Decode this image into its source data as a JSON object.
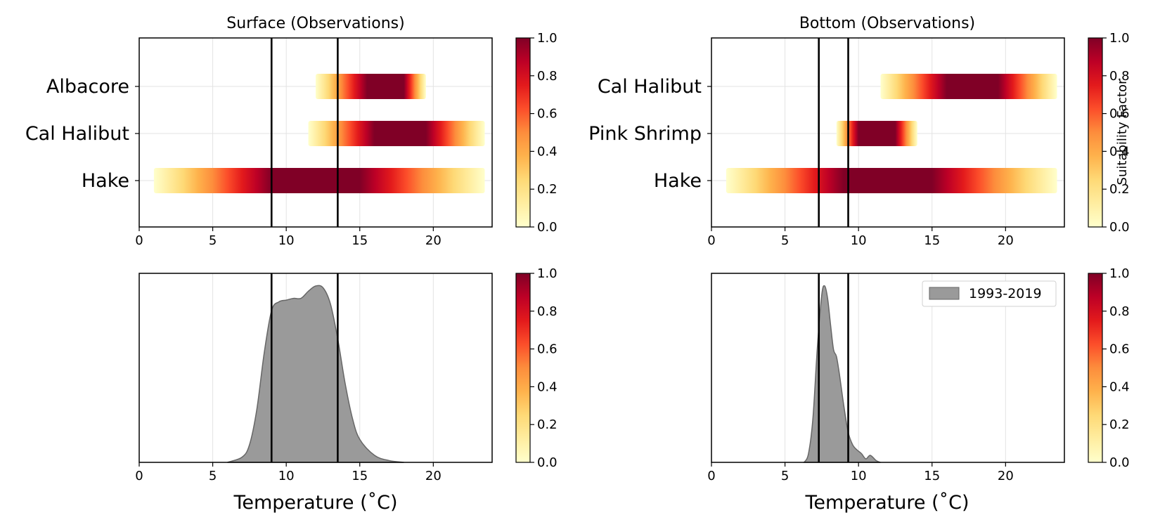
{
  "figure": {
    "colormap": "YlOrRd",
    "colors": {
      "density_fill": "#9a9a9a",
      "density_edge": "#666666",
      "threshold_line": "#000000",
      "grid": "#e3e3e3"
    }
  },
  "colorbar": {
    "label": "Suitability Factor",
    "ticks": [
      0.0,
      0.2,
      0.4,
      0.6,
      0.8,
      1.0
    ],
    "tick_labels": [
      "0.0",
      "0.2",
      "0.4",
      "0.6",
      "0.8",
      "1.0"
    ]
  },
  "chart_data": [
    {
      "id": "surface-suitability",
      "type": "heatmap",
      "title": "Surface (Observations)",
      "xlabel": "",
      "xlim": [
        0,
        24
      ],
      "xticks": [
        0,
        5,
        10,
        15,
        20
      ],
      "threshold_lines": [
        9.0,
        13.5
      ],
      "grid": true,
      "rows": [
        {
          "label": "Albacore",
          "x_range": [
            12.0,
            19.5
          ],
          "peak_range": [
            15.5,
            18.0
          ]
        },
        {
          "label": "Cal Halibut",
          "x_range": [
            11.5,
            23.5
          ],
          "peak_range": [
            16.0,
            19.5
          ]
        },
        {
          "label": "Hake",
          "x_range": [
            1.0,
            23.5
          ],
          "peak_range": [
            9.0,
            15.0
          ]
        }
      ]
    },
    {
      "id": "bottom-suitability",
      "type": "heatmap",
      "title": "Bottom (Observations)",
      "xlabel": "",
      "xlim": [
        0,
        24
      ],
      "xticks": [
        0,
        5,
        10,
        15,
        20
      ],
      "threshold_lines": [
        7.3,
        9.3
      ],
      "grid": true,
      "rows": [
        {
          "label": "Cal Halibut",
          "x_range": [
            11.5,
            23.5
          ],
          "peak_range": [
            16.0,
            19.5
          ]
        },
        {
          "label": "Pink Shrimp",
          "x_range": [
            8.5,
            14.0
          ],
          "peak_range": [
            10.0,
            12.5
          ]
        },
        {
          "label": "Hake",
          "x_range": [
            1.0,
            23.5
          ],
          "peak_range": [
            9.0,
            15.0
          ]
        }
      ]
    },
    {
      "id": "surface-distribution",
      "type": "area",
      "title": "",
      "xlabel": "Temperature ($^\\circ$C)",
      "xlabel_display": "Temperature (˚C)",
      "xlim": [
        0,
        24
      ],
      "xticks": [
        0,
        5,
        10,
        15,
        20
      ],
      "threshold_lines": [
        9.0,
        13.5
      ],
      "grid": true,
      "legend": null,
      "series": [
        {
          "name": "",
          "x": [
            6.0,
            7.0,
            7.5,
            8.0,
            8.5,
            9.0,
            9.5,
            10.0,
            10.5,
            11.0,
            11.5,
            12.0,
            12.5,
            13.0,
            13.5,
            14.0,
            14.5,
            15.0,
            16.0,
            17.0,
            18.0
          ],
          "y": [
            0.0,
            0.03,
            0.1,
            0.3,
            0.62,
            0.86,
            0.91,
            0.92,
            0.93,
            0.93,
            0.97,
            1.0,
            0.99,
            0.9,
            0.7,
            0.45,
            0.25,
            0.13,
            0.04,
            0.01,
            0.0
          ]
        }
      ]
    },
    {
      "id": "bottom-distribution",
      "type": "area",
      "title": "",
      "xlabel": "Temperature ($^\\circ$C)",
      "xlabel_display": "Temperature (˚C)",
      "xlim": [
        0,
        24
      ],
      "xticks": [
        0,
        5,
        10,
        15,
        20
      ],
      "threshold_lines": [
        7.3,
        9.3
      ],
      "grid": true,
      "legend": {
        "position": "upper right",
        "label": "1993-2019"
      },
      "series": [
        {
          "name": "1993-2019",
          "x": [
            6.3,
            6.6,
            6.9,
            7.2,
            7.5,
            7.7,
            7.9,
            8.1,
            8.3,
            8.5,
            8.7,
            9.0,
            9.3,
            9.6,
            9.9,
            10.2,
            10.5,
            10.8,
            11.2,
            11.5
          ],
          "y": [
            0.0,
            0.05,
            0.25,
            0.65,
            0.95,
            1.0,
            0.93,
            0.78,
            0.64,
            0.6,
            0.5,
            0.32,
            0.17,
            0.1,
            0.07,
            0.05,
            0.02,
            0.04,
            0.01,
            0.0
          ]
        }
      ]
    }
  ]
}
